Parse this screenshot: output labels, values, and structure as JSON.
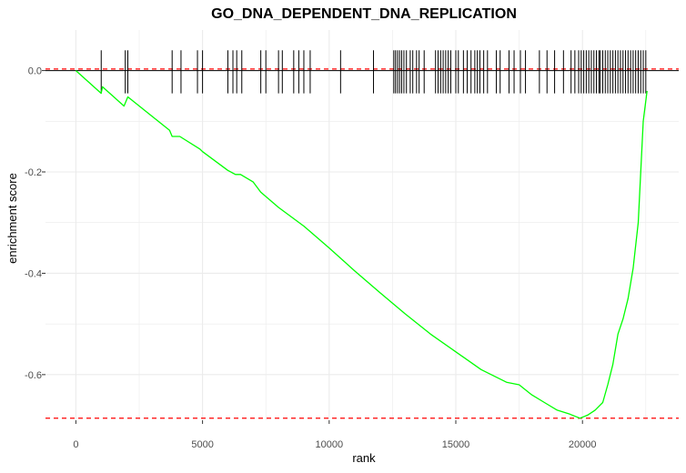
{
  "chart_data": {
    "type": "line",
    "title": "GO_DNA_DEPENDENT_DNA_REPLICATION",
    "xlabel": "rank",
    "ylabel": "enrichment score",
    "xlim": [
      -1200,
      23800
    ],
    "ylim": [
      -0.69,
      0.08
    ],
    "x_ticks": [
      0,
      5000,
      10000,
      15000,
      20000
    ],
    "y_ticks": [
      0.0,
      -0.2,
      -0.4,
      -0.6
    ],
    "x_tick_labels": [
      "0",
      "5000",
      "10000",
      "15000",
      "20000"
    ],
    "y_tick_labels": [
      "0.0",
      "-0.2",
      "-0.4",
      "-0.6"
    ],
    "grid": true,
    "colors": {
      "line": "#00ff00",
      "hline_dashed": "#ff0000",
      "zero_line": "#000000",
      "hits": "#000000",
      "grid": "#ebebeb"
    },
    "dashed_hlines": [
      0.003,
      -0.686
    ],
    "series": [
      {
        "points": [
          [
            0,
            0.0
          ],
          [
            1000,
            -0.045
          ],
          [
            1050,
            -0.032
          ],
          [
            1900,
            -0.07
          ],
          [
            2050,
            -0.052
          ],
          [
            3700,
            -0.118
          ],
          [
            3800,
            -0.13
          ],
          [
            4100,
            -0.13
          ],
          [
            4900,
            -0.155
          ],
          [
            5000,
            -0.16
          ],
          [
            6000,
            -0.197
          ],
          [
            6300,
            -0.205
          ],
          [
            6500,
            -0.205
          ],
          [
            7000,
            -0.22
          ],
          [
            7300,
            -0.24
          ],
          [
            8000,
            -0.27
          ],
          [
            9000,
            -0.307
          ],
          [
            10000,
            -0.35
          ],
          [
            11000,
            -0.395
          ],
          [
            12000,
            -0.438
          ],
          [
            13000,
            -0.48
          ],
          [
            14000,
            -0.52
          ],
          [
            15000,
            -0.555
          ],
          [
            16000,
            -0.59
          ],
          [
            17000,
            -0.615
          ],
          [
            17500,
            -0.62
          ],
          [
            18000,
            -0.64
          ],
          [
            18500,
            -0.655
          ],
          [
            19000,
            -0.67
          ],
          [
            19500,
            -0.678
          ],
          [
            19900,
            -0.686
          ],
          [
            20200,
            -0.68
          ],
          [
            20500,
            -0.67
          ],
          [
            20800,
            -0.655
          ],
          [
            21000,
            -0.62
          ],
          [
            21200,
            -0.58
          ],
          [
            21400,
            -0.52
          ],
          [
            21600,
            -0.49
          ],
          [
            21800,
            -0.45
          ],
          [
            22000,
            -0.39
          ],
          [
            22200,
            -0.3
          ],
          [
            22400,
            -0.1
          ],
          [
            22550,
            -0.04
          ]
        ]
      }
    ],
    "hits": [
      1000,
      1950,
      2050,
      3800,
      4150,
      4800,
      5000,
      6000,
      6200,
      6350,
      6550,
      7300,
      7500,
      8000,
      8150,
      8600,
      8800,
      9000,
      9250,
      10450,
      11750,
      12550,
      12620,
      12700,
      12780,
      12860,
      12950,
      13050,
      13200,
      13300,
      13450,
      13550,
      13750,
      14200,
      14300,
      14400,
      14500,
      14600,
      14700,
      14800,
      15000,
      15100,
      15300,
      15450,
      15600,
      15750,
      15850,
      15950,
      16100,
      16250,
      16600,
      16750,
      17100,
      17300,
      17550,
      17750,
      18300,
      18600,
      18900,
      19250,
      19550,
      19700,
      19850,
      19950,
      20050,
      20150,
      20250,
      20350,
      20450,
      20550,
      20650,
      20700,
      20800,
      20900,
      21000,
      21100,
      21200,
      21300,
      21400,
      21500,
      21600,
      21700,
      21800,
      21900,
      22000,
      22100,
      22200,
      22300,
      22400,
      22500
    ]
  }
}
